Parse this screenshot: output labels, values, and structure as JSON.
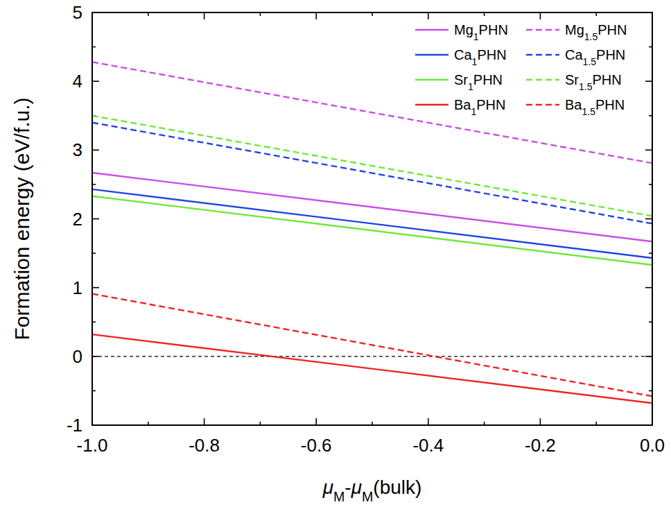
{
  "chart_data": {
    "type": "line",
    "x_label": "μM-μM(bulk)",
    "y_label": "Formation energy (eV/f.u.)",
    "x": [
      -1,
      0
    ],
    "xlim": [
      -1,
      0
    ],
    "xticks": [
      {
        "value": -1,
        "label": "-1.0"
      },
      {
        "value": -0.8,
        "label": "-0.8"
      },
      {
        "value": -0.6,
        "label": "-0.6"
      },
      {
        "value": -0.4,
        "label": "-0.4"
      },
      {
        "value": -0.2,
        "label": "-0.2"
      },
      {
        "value": 0,
        "label": "0.0"
      }
    ],
    "ylim": [
      -1,
      5
    ],
    "yticks": [
      -1,
      0,
      1,
      2,
      3,
      4,
      5
    ],
    "reference_line": 0,
    "legend": "upper right",
    "grid": false,
    "series": [
      {
        "name": "Mg1PHN",
        "color": "#c94ee6",
        "line_style": "solid",
        "values": [
          2.67,
          1.67
        ]
      },
      {
        "name": "Ca1PHN",
        "color": "#1f45e0",
        "line_style": "solid",
        "values": [
          2.43,
          1.43
        ]
      },
      {
        "name": "Sr1PHN",
        "color": "#6ee83a",
        "line_style": "solid",
        "values": [
          2.33,
          1.33
        ]
      },
      {
        "name": "Ba1PHN",
        "color": "#ee2424",
        "line_style": "solid",
        "values": [
          0.32,
          -0.68
        ]
      },
      {
        "name": "Mg1.5PHN",
        "color": "#c94ee6",
        "line_style": "dashed",
        "values": [
          4.28,
          2.81
        ]
      },
      {
        "name": "Ca1.5PHN",
        "color": "#1f45e0",
        "line_style": "dashed",
        "values": [
          3.4,
          1.93
        ]
      },
      {
        "name": "Sr1.5PHN",
        "color": "#6ee83a",
        "line_style": "dashed",
        "values": [
          3.5,
          2.04
        ]
      },
      {
        "name": "Ba1.5PHN",
        "color": "#ee2424",
        "line_style": "dashed",
        "values": [
          0.91,
          -0.58
        ]
      }
    ]
  }
}
